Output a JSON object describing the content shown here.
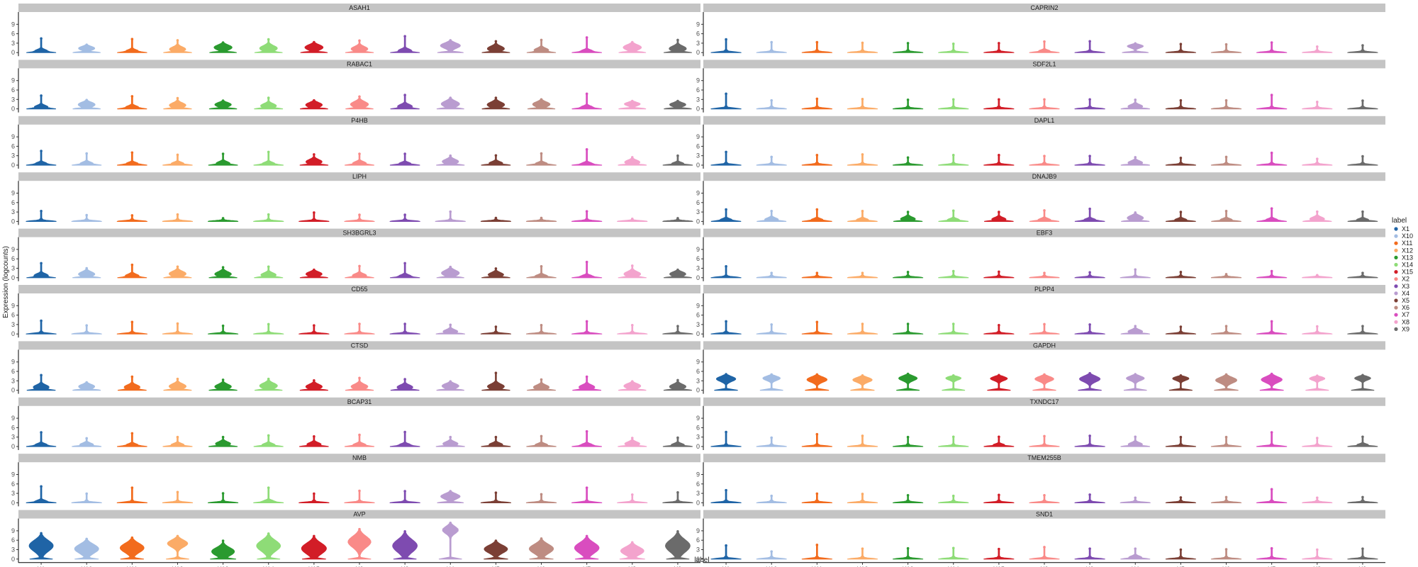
{
  "chart_data": {
    "type": "violin",
    "title": "",
    "xlabel": "label",
    "ylabel": "Expression (logcounts)",
    "ylim": [
      0,
      12
    ],
    "yticks": [
      0,
      3,
      6,
      9
    ],
    "legend": {
      "title": "label",
      "placement": "right"
    },
    "categories": [
      "X1",
      "X10",
      "X11",
      "X12",
      "X13",
      "X14",
      "X15",
      "X2",
      "X3",
      "X4",
      "X5",
      "X6",
      "X7",
      "X8",
      "X9"
    ],
    "colors": [
      "#1f64a6",
      "#a3bde3",
      "#f26b1d",
      "#fbab67",
      "#2a9a2f",
      "#8edc77",
      "#d21d27",
      "#f98a88",
      "#7e4bb0",
      "#b99cd0",
      "#7b3f35",
      "#be8c82",
      "#d94dbf",
      "#f3a3cd",
      "#6b6b6b"
    ],
    "panels": [
      {
        "gene": "ASAH1",
        "max": [
          4.5,
          2.5,
          4.3,
          3.9,
          3.2,
          4.2,
          3.3,
          3.8,
          5.2,
          3.9,
          3.6,
          4,
          4.8,
          3.3,
          4
        ],
        "median": [
          0.5,
          1.5,
          0.4,
          1.1,
          1.8,
          1.4,
          1.8,
          1.2,
          0.6,
          2.4,
          1.3,
          0.8,
          0.3,
          1.8,
          1.3
        ]
      },
      {
        "gene": "CAPRIN2",
        "max": [
          4.2,
          3.3,
          3.3,
          3.1,
          3,
          2.8,
          3,
          3.5,
          3.6,
          2.9,
          2.7,
          2.6,
          3.2,
          1.9,
          2.3
        ],
        "median": [
          0.1,
          0.1,
          0.1,
          0.1,
          0.1,
          0.1,
          0.1,
          0.2,
          0.1,
          2.2,
          0.1,
          0.1,
          0.1,
          0.1,
          0.1
        ]
      },
      {
        "gene": "RABAC1",
        "max": [
          4.2,
          2.8,
          4,
          3.4,
          2.6,
          3.5,
          2.7,
          3.9,
          4.4,
          3.5,
          3.5,
          3,
          4.8,
          2.5,
          2.5
        ],
        "median": [
          0.6,
          1.5,
          0.5,
          1.2,
          1.5,
          1,
          1.4,
          1.5,
          0.8,
          1.7,
          1.4,
          1.6,
          0.4,
          1.7,
          1.5
        ]
      },
      {
        "gene": "SDF2L1",
        "max": [
          4.8,
          2.7,
          3.2,
          3.1,
          2.9,
          3,
          3,
          3,
          3,
          2.9,
          2.7,
          2.7,
          4.4,
          2.2,
          2.6
        ],
        "median": [
          0.1,
          0.1,
          0.1,
          0.1,
          0.1,
          0.1,
          0.1,
          0.1,
          0.1,
          0.8,
          0.1,
          0.1,
          0.1,
          0.1,
          0.1
        ]
      },
      {
        "gene": "P4HB",
        "max": [
          4.5,
          3.7,
          4,
          3.3,
          3.6,
          4.2,
          3.4,
          3.6,
          3.6,
          3,
          3.1,
          3.7,
          5,
          2.5,
          3
        ],
        "median": [
          0.3,
          0.5,
          0.3,
          0.4,
          0.6,
          0.4,
          1.1,
          0.6,
          0.3,
          1.2,
          0.6,
          0.3,
          0.2,
          1,
          0.3
        ]
      },
      {
        "gene": "DAPL1",
        "max": [
          4.2,
          2.6,
          3.2,
          3.4,
          2.4,
          3.2,
          3.2,
          2.9,
          2.9,
          2.5,
          2.3,
          2.6,
          3.9,
          2,
          2.8
        ],
        "median": [
          0.1,
          0.1,
          0.1,
          0.1,
          0.1,
          0.1,
          0.1,
          0.1,
          0.1,
          0.8,
          0.1,
          0.1,
          0.1,
          0.1,
          0.1
        ]
      },
      {
        "gene": "LIPH",
        "max": [
          3.3,
          2,
          1.9,
          2.2,
          1,
          2.2,
          2.8,
          2.1,
          2.1,
          3.1,
          1.1,
          1.1,
          3.2,
          0.8,
          1
        ],
        "median": [
          0.1,
          0.1,
          0.1,
          0.1,
          0.1,
          0.1,
          0.1,
          0.1,
          0.1,
          0.1,
          0.1,
          0.1,
          0.1,
          0.1,
          0.1
        ]
      },
      {
        "gene": "DNAJB9",
        "max": [
          3.8,
          3.3,
          3.8,
          3.3,
          3,
          3.4,
          3,
          3.5,
          4,
          2.8,
          3,
          3.3,
          4.1,
          3.1,
          3.1
        ],
        "median": [
          0.3,
          0.6,
          0.3,
          0.3,
          0.8,
          0.3,
          0.7,
          0.4,
          0.3,
          1.2,
          0.3,
          0.3,
          0.3,
          0.8,
          0.3
        ]
      },
      {
        "gene": "SH3BGRL3",
        "max": [
          4.6,
          3,
          4.1,
          3.5,
          3.3,
          3.5,
          2.5,
          3.7,
          4.6,
          3.4,
          2.9,
          3.6,
          5,
          3.8,
          2.5
        ],
        "median": [
          0.7,
          1.2,
          0.6,
          1.3,
          1.2,
          0.9,
          1.3,
          0.7,
          0.4,
          1.6,
          1,
          0.4,
          0.2,
          1.2,
          1.3
        ]
      },
      {
        "gene": "EBF3",
        "max": [
          3.6,
          1.5,
          1.5,
          1.5,
          1.8,
          2.1,
          1.9,
          1.5,
          1.7,
          2.6,
          1.8,
          1.1,
          2.1,
          0.8,
          1.5
        ],
        "median": [
          0.1,
          0.1,
          0.1,
          0.1,
          0.1,
          0.1,
          0.1,
          0.1,
          0.1,
          0.1,
          0.1,
          0.1,
          0.1,
          0.1,
          0.1
        ]
      },
      {
        "gene": "CD55",
        "max": [
          4.2,
          2.7,
          3.8,
          3.3,
          2.6,
          3.1,
          2.7,
          3.2,
          3.2,
          2.9,
          2.3,
          2.8,
          4,
          2.8,
          2.5
        ],
        "median": [
          0.1,
          0.1,
          0.1,
          0.1,
          0.1,
          0.1,
          0.1,
          0.1,
          0.1,
          0.8,
          0.1,
          0.1,
          0.1,
          0.1,
          0.1
        ]
      },
      {
        "gene": "PLPP4",
        "max": [
          4,
          3,
          3.8,
          3.2,
          3.2,
          3.2,
          2.8,
          3.1,
          3,
          2.5,
          2.3,
          2.5,
          4,
          2.4,
          2.5
        ],
        "median": [
          0.1,
          0.1,
          0.1,
          0.1,
          0.1,
          0.1,
          0.1,
          0.1,
          0.1,
          0.8,
          0.1,
          0.1,
          0.1,
          0.1,
          0.1
        ]
      },
      {
        "gene": "CTSD",
        "max": [
          4.8,
          2.5,
          4.3,
          3.6,
          3.3,
          3.6,
          3.1,
          3.9,
          3.5,
          2.8,
          5.5,
          3.4,
          4.3,
          2.8,
          3.2
        ],
        "median": [
          1,
          1.3,
          1,
          1.3,
          1.2,
          1.5,
          1.2,
          1.2,
          1,
          1.5,
          1.2,
          1,
          1,
          1.5,
          1.2
        ]
      },
      {
        "gene": "GAPDH",
        "max": [
          5.1,
          5,
          5,
          4.7,
          5.2,
          4.7,
          4.8,
          5,
          5.4,
          5.1,
          4.7,
          5,
          5.2,
          4.6,
          4.8
        ],
        "median": [
          3.8,
          4,
          3.6,
          3.5,
          4,
          4,
          3.9,
          3.8,
          3.8,
          4,
          3.9,
          3.4,
          3.6,
          3.9,
          4
        ]
      },
      {
        "gene": "BCAP31",
        "max": [
          4.5,
          2.6,
          4.2,
          3,
          3,
          3.5,
          3.2,
          3.7,
          4.6,
          3,
          3,
          3.3,
          4.8,
          2.7,
          2.8
        ],
        "median": [
          0.4,
          0.6,
          0.3,
          0.5,
          0.9,
          0.5,
          0.7,
          0.5,
          0.3,
          0.9,
          0.6,
          0.4,
          0.3,
          0.9,
          0.5
        ]
      },
      {
        "gene": "TXNDC17",
        "max": [
          4.6,
          2.8,
          3.9,
          3.4,
          3,
          3.1,
          3.1,
          3.3,
          3.4,
          3.1,
          3,
          3,
          4.5,
          2.7,
          3.1
        ],
        "median": [
          0.1,
          0.1,
          0.1,
          0.1,
          0.1,
          0.1,
          0.2,
          0.1,
          0.1,
          0.7,
          0.1,
          0.1,
          0.1,
          0.1,
          0.2
        ]
      },
      {
        "gene": "NMB",
        "max": [
          5.2,
          2.9,
          4.8,
          3.4,
          3,
          4.8,
          2.9,
          3.8,
          3.7,
          3.7,
          3.2,
          2.7,
          4.8,
          2.6,
          3.3
        ],
        "median": [
          0.2,
          0.1,
          0.1,
          0.1,
          0.1,
          0.2,
          0.1,
          0.1,
          0.1,
          2.2,
          0.1,
          0.1,
          0.1,
          0.1,
          0.1
        ]
      },
      {
        "gene": "TMEM255B",
        "max": [
          4,
          2.2,
          2.9,
          2.8,
          2.4,
          2.2,
          2.5,
          2.4,
          2.6,
          1.6,
          1.7,
          1.8,
          4.3,
          1.6,
          1.8
        ],
        "median": [
          0.1,
          0.1,
          0.1,
          0.1,
          0.1,
          0.1,
          0.1,
          0.1,
          0.1,
          0.1,
          0.1,
          0.1,
          0.1,
          0.1,
          0.1
        ]
      },
      {
        "gene": "AVP",
        "max": [
          8.2,
          6.4,
          6.8,
          7.3,
          5.8,
          8.1,
          7.3,
          9.5,
          8.8,
          11.5,
          5.8,
          6.5,
          7.3,
          5.3,
          8.8
        ],
        "median": [
          4.5,
          3.5,
          3.8,
          5.2,
          2.5,
          4.5,
          3.6,
          5.8,
          4.5,
          9.5,
          3.4,
          3.5,
          3.8,
          2.8,
          4.5
        ]
      },
      {
        "gene": "SND1",
        "max": [
          4.3,
          2.4,
          4.5,
          3.3,
          3.4,
          3.5,
          3.2,
          3.8,
          3.3,
          3.3,
          3,
          3.1,
          3.4,
          3,
          3.3
        ],
        "median": [
          0.1,
          0.1,
          0.1,
          0.1,
          0.1,
          0.1,
          0.1,
          0.1,
          0.1,
          0.5,
          0.1,
          0.1,
          0.1,
          0.1,
          0.1
        ]
      }
    ]
  }
}
